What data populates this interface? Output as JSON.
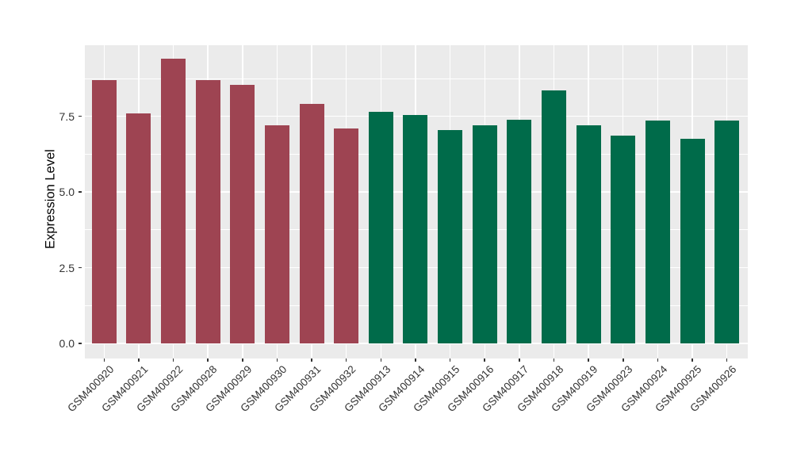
{
  "chart_data": {
    "type": "bar",
    "title": "",
    "xlabel": "",
    "ylabel": "Expression Level",
    "categories": [
      "GSM400920",
      "GSM400921",
      "GSM400922",
      "GSM400928",
      "GSM400929",
      "GSM400930",
      "GSM400931",
      "GSM400932",
      "GSM400913",
      "GSM400914",
      "GSM400915",
      "GSM400916",
      "GSM400917",
      "GSM400918",
      "GSM400919",
      "GSM400923",
      "GSM400924",
      "GSM400925",
      "GSM400926"
    ],
    "values": [
      8.7,
      7.6,
      9.4,
      8.7,
      8.55,
      7.2,
      7.9,
      7.1,
      7.65,
      7.55,
      7.05,
      7.2,
      7.4,
      8.35,
      7.2,
      6.85,
      7.35,
      6.75,
      7.35
    ],
    "groups": [
      "A",
      "A",
      "A",
      "A",
      "A",
      "A",
      "A",
      "A",
      "B",
      "B",
      "B",
      "B",
      "B",
      "B",
      "B",
      "B",
      "B",
      "B",
      "B"
    ],
    "group_colors": {
      "A": "#9E4452",
      "B": "#006B4A"
    },
    "ytick_values": [
      0,
      2.5,
      5,
      7.5
    ],
    "ytick_labels": [
      "0.0",
      "2.5",
      "5.0",
      "7.5"
    ],
    "yminor_values": [
      1.25,
      3.75,
      6.25,
      8.75
    ],
    "ylim": [
      -0.5,
      9.85
    ],
    "grid": true,
    "legend": false,
    "colors": {
      "panel_background": "#EBEBEB",
      "grid": "#FFFFFF",
      "axis_text": "#333333",
      "axis_title": "#000000",
      "tick_mark": "#333333"
    }
  }
}
